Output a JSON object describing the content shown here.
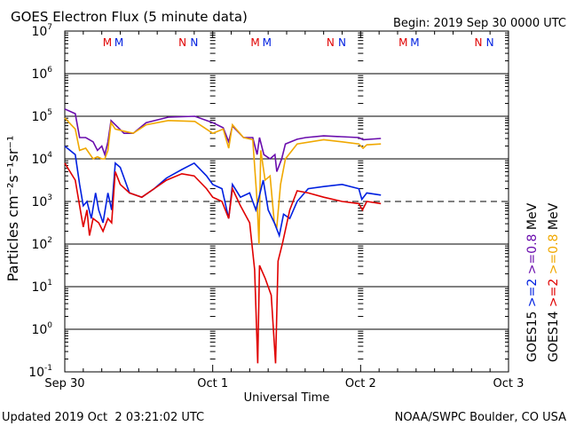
{
  "chart_data": {
    "type": "line",
    "title": "GOES Electron Flux (5 minute data)",
    "begin": "Begin: 2019 Sep 30 0000 UTC",
    "xlabel": "Universal Time",
    "ylabel": "Particles cm⁻²s⁻¹sr⁻¹",
    "xlim_hours": [
      0,
      72
    ],
    "ylim_log10": [
      -1,
      7
    ],
    "yscale": "log",
    "x_ticks": [
      {
        "h": 0,
        "label": "Sep 30"
      },
      {
        "h": 24,
        "label": "Oct 1"
      },
      {
        "h": 48,
        "label": "Oct 2"
      },
      {
        "h": 72,
        "label": "Oct 3"
      }
    ],
    "y_ticks": [
      {
        "exp": 7,
        "label": "10",
        "sup": "7"
      },
      {
        "exp": 6,
        "label": "10",
        "sup": "6"
      },
      {
        "exp": 5,
        "label": "10",
        "sup": "5"
      },
      {
        "exp": 4,
        "label": "10",
        "sup": "4"
      },
      {
        "exp": 3,
        "label": "10",
        "sup": "3"
      },
      {
        "exp": 2,
        "label": "10",
        "sup": "2"
      },
      {
        "exp": 1,
        "label": "10",
        "sup": "1"
      },
      {
        "exp": 0,
        "label": "10",
        "sup": "0"
      },
      {
        "exp": -1,
        "label": "10",
        "sup": "-1"
      }
    ],
    "threshold_log10": 3,
    "markers": [
      {
        "h": 6.9,
        "label": "M",
        "color": "#e00000"
      },
      {
        "h": 8.8,
        "label": "M",
        "color": "#0020e0"
      },
      {
        "h": 19.1,
        "label": "N",
        "color": "#e00000"
      },
      {
        "h": 21.0,
        "label": "N",
        "color": "#0020e0"
      },
      {
        "h": 30.9,
        "label": "M",
        "color": "#e00000"
      },
      {
        "h": 32.8,
        "label": "M",
        "color": "#0020e0"
      },
      {
        "h": 43.1,
        "label": "N",
        "color": "#e00000"
      },
      {
        "h": 45.0,
        "label": "N",
        "color": "#0020e0"
      },
      {
        "h": 54.9,
        "label": "M",
        "color": "#e00000"
      },
      {
        "h": 56.8,
        "label": "M",
        "color": "#0020e0"
      },
      {
        "h": 67.1,
        "label": "N",
        "color": "#e00000"
      },
      {
        "h": 69.0,
        "label": "N",
        "color": "#0020e0"
      }
    ],
    "series": [
      {
        "name": "GOES15 >=0.8 MeV",
        "color": "#6a0dad",
        "points": [
          [
            0,
            5.17
          ],
          [
            1.7,
            5.06
          ],
          [
            2.4,
            4.5
          ],
          [
            3.4,
            4.5
          ],
          [
            4.6,
            4.4
          ],
          [
            5.3,
            4.2
          ],
          [
            6,
            4.3
          ],
          [
            6.5,
            4.1
          ],
          [
            7,
            4.4
          ],
          [
            7.5,
            4.9
          ],
          [
            8.2,
            4.8
          ],
          [
            9.6,
            4.6
          ],
          [
            11.1,
            4.6
          ],
          [
            13.2,
            4.85
          ],
          [
            16.8,
            4.98
          ],
          [
            21.1,
            5.0
          ],
          [
            24,
            4.85
          ],
          [
            25.7,
            4.73
          ],
          [
            26.6,
            4.4
          ],
          [
            27.2,
            4.77
          ],
          [
            29,
            4.5
          ],
          [
            30.5,
            4.5
          ],
          [
            31.2,
            4.1
          ],
          [
            31.6,
            4.5
          ],
          [
            32.3,
            4.1
          ],
          [
            33.3,
            4.0
          ],
          [
            34.1,
            4.1
          ],
          [
            34.4,
            3.7
          ],
          [
            35.2,
            4.0
          ],
          [
            35.8,
            4.35
          ],
          [
            37.7,
            4.46
          ],
          [
            39.1,
            4.5
          ],
          [
            42,
            4.54
          ],
          [
            44.8,
            4.52
          ],
          [
            47.7,
            4.5
          ],
          [
            48.4,
            4.45
          ],
          [
            51.3,
            4.48
          ]
        ]
      },
      {
        "name": "GOES14 >=0.8 MeV",
        "color": "#f0a800",
        "points": [
          [
            0,
            4.96
          ],
          [
            1.7,
            4.7
          ],
          [
            2.4,
            4.2
          ],
          [
            3.4,
            4.25
          ],
          [
            4.6,
            4.0
          ],
          [
            5.3,
            4.05
          ],
          [
            6,
            4.0
          ],
          [
            6.5,
            4.0
          ],
          [
            7,
            4.2
          ],
          [
            7.5,
            4.85
          ],
          [
            8.2,
            4.7
          ],
          [
            9.6,
            4.65
          ],
          [
            11.1,
            4.6
          ],
          [
            13.2,
            4.8
          ],
          [
            16.8,
            4.9
          ],
          [
            21.1,
            4.88
          ],
          [
            24,
            4.6
          ],
          [
            25.7,
            4.7
          ],
          [
            26.6,
            4.25
          ],
          [
            27.2,
            4.8
          ],
          [
            29,
            4.5
          ],
          [
            30.5,
            4.45
          ],
          [
            31.2,
            3.0
          ],
          [
            31.5,
            2.0
          ],
          [
            31.8,
            4.2
          ],
          [
            32.5,
            3.5
          ],
          [
            33.3,
            3.6
          ],
          [
            34.0,
            2.5
          ],
          [
            34.4,
            2.4
          ],
          [
            35,
            3.4
          ],
          [
            35.8,
            4.0
          ],
          [
            37.7,
            4.35
          ],
          [
            42,
            4.45
          ],
          [
            45,
            4.4
          ],
          [
            47.7,
            4.35
          ],
          [
            48.4,
            4.25
          ],
          [
            49,
            4.33
          ],
          [
            51.3,
            4.35
          ]
        ]
      },
      {
        "name": "GOES15 >=2 MeV",
        "color": "#0020e0",
        "points": [
          [
            0,
            4.3
          ],
          [
            1.7,
            4.1
          ],
          [
            2.4,
            3.4
          ],
          [
            3,
            2.9
          ],
          [
            3.6,
            3.0
          ],
          [
            4.3,
            2.6
          ],
          [
            5,
            3.2
          ],
          [
            5.5,
            2.8
          ],
          [
            6.2,
            2.5
          ],
          [
            7,
            3.2
          ],
          [
            7.6,
            2.8
          ],
          [
            8.2,
            3.9
          ],
          [
            9,
            3.8
          ],
          [
            10.5,
            3.2
          ],
          [
            12.5,
            3.1
          ],
          [
            14.5,
            3.3
          ],
          [
            16.5,
            3.55
          ],
          [
            19,
            3.75
          ],
          [
            21,
            3.9
          ],
          [
            23,
            3.6
          ],
          [
            24,
            3.4
          ],
          [
            25.5,
            3.3
          ],
          [
            26.6,
            2.6
          ],
          [
            27.2,
            3.4
          ],
          [
            28.5,
            3.1
          ],
          [
            30,
            3.2
          ],
          [
            31,
            2.8
          ],
          [
            32.2,
            3.5
          ],
          [
            33,
            2.8
          ],
          [
            34,
            2.5
          ],
          [
            34.8,
            2.2
          ],
          [
            35.5,
            2.7
          ],
          [
            36.5,
            2.6
          ],
          [
            37.7,
            3.0
          ],
          [
            39.5,
            3.3
          ],
          [
            42,
            3.35
          ],
          [
            45,
            3.4
          ],
          [
            47.7,
            3.3
          ],
          [
            48.2,
            3.05
          ],
          [
            49,
            3.2
          ],
          [
            51.3,
            3.15
          ]
        ]
      },
      {
        "name": "GOES14 >=2 MeV",
        "color": "#e00000",
        "points": [
          [
            0,
            3.9
          ],
          [
            1.7,
            3.5
          ],
          [
            2.4,
            2.9
          ],
          [
            3,
            2.4
          ],
          [
            3.6,
            2.8
          ],
          [
            4,
            2.2
          ],
          [
            4.6,
            2.6
          ],
          [
            5.5,
            2.5
          ],
          [
            6.2,
            2.3
          ],
          [
            7,
            2.6
          ],
          [
            7.6,
            2.5
          ],
          [
            8.2,
            3.7
          ],
          [
            9,
            3.4
          ],
          [
            10.5,
            3.2
          ],
          [
            12.5,
            3.1
          ],
          [
            14.5,
            3.3
          ],
          [
            16.5,
            3.5
          ],
          [
            19,
            3.65
          ],
          [
            21,
            3.6
          ],
          [
            23,
            3.3
          ],
          [
            24,
            3.1
          ],
          [
            25.5,
            3.0
          ],
          [
            26.6,
            2.6
          ],
          [
            27.2,
            3.3
          ],
          [
            28.5,
            2.9
          ],
          [
            30,
            2.5
          ],
          [
            30.8,
            1.4
          ],
          [
            31.3,
            -0.8
          ],
          [
            31.6,
            1.5
          ],
          [
            32.5,
            1.2
          ],
          [
            33.5,
            0.8
          ],
          [
            34.2,
            -0.8
          ],
          [
            34.6,
            1.6
          ],
          [
            35.3,
            2.0
          ],
          [
            36.5,
            2.8
          ],
          [
            37.7,
            3.25
          ],
          [
            39.5,
            3.2
          ],
          [
            42,
            3.1
          ],
          [
            45,
            3.0
          ],
          [
            47.7,
            2.95
          ],
          [
            48.3,
            2.8
          ],
          [
            49,
            3.0
          ],
          [
            51.3,
            2.95
          ]
        ]
      }
    ],
    "legend": {
      "placement": "right",
      "columns": [
        {
          "sat": "GOES15",
          "e2": ">=2",
          "e08": ">=0.8",
          "unit": "MeV",
          "c2": "#0020e0",
          "c08": "#6a0dad"
        },
        {
          "sat": "GOES14",
          "e2": ">=2",
          "e08": ">=0.8",
          "unit": "MeV",
          "c2": "#e00000",
          "c08": "#f0a800"
        }
      ]
    }
  },
  "footer": {
    "updated": "Updated 2019 Oct  2 03:21:02 UTC",
    "credit": "NOAA/SWPC Boulder, CO USA"
  }
}
